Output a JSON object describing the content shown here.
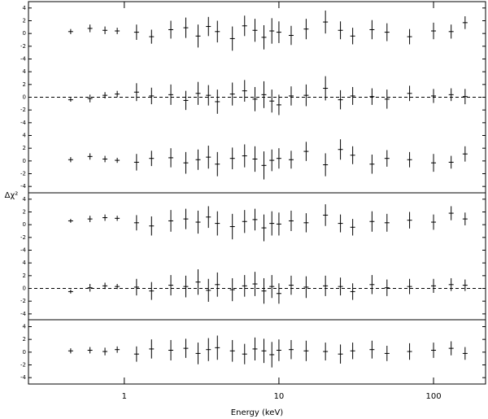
{
  "chart_data": {
    "type": "residuals",
    "xlabel": "Energy (keV)",
    "ylabel": "Δχ²",
    "log_x": true,
    "color": "#000000",
    "xlim": [
      0.24,
      217
    ],
    "xticks": [
      1,
      10,
      100
    ],
    "ylim": [
      -5,
      5
    ],
    "yticks": [
      -4,
      -2,
      0,
      2,
      4
    ],
    "x": [
      0.45,
      0.6,
      0.75,
      0.9,
      1.2,
      1.5,
      2,
      2.5,
      3,
      3.5,
      4,
      5,
      6,
      7,
      8,
      9,
      10,
      12,
      15,
      20,
      25,
      30,
      40,
      50,
      70,
      100,
      130,
      160
    ],
    "series": [
      {
        "zero_line": false,
        "values": [
          0.3,
          0.8,
          0.5,
          0.4,
          0.2,
          -0.5,
          0.6,
          0.9,
          -0.4,
          1.1,
          0.3,
          -0.8,
          1.2,
          0.5,
          -0.6,
          0.4,
          0.2,
          -0.3,
          0.7,
          1.8,
          0.5,
          -0.4,
          0.6,
          0.2,
          -0.5,
          0.4,
          0.3,
          1.7
        ],
        "errors": [
          0.4,
          0.6,
          0.6,
          0.5,
          1.2,
          1.1,
          1.4,
          1.6,
          1.8,
          1.5,
          1.7,
          1.9,
          1.6,
          1.8,
          1.9,
          2.0,
          1.7,
          1.5,
          1.6,
          1.8,
          1.4,
          1.3,
          1.5,
          1.4,
          1.2,
          1.3,
          1.1,
          1.0
        ]
      },
      {
        "zero_line": true,
        "values": [
          -0.4,
          -0.2,
          0.3,
          0.5,
          0.8,
          0.2,
          0.4,
          -0.5,
          0.6,
          0.3,
          -0.7,
          0.5,
          1.0,
          -0.3,
          0.4,
          -0.6,
          -1.2,
          0.2,
          0.3,
          1.4,
          -0.4,
          0.2,
          0.1,
          -0.3,
          0.6,
          0.2,
          0.4,
          0.1
        ],
        "errors": [
          0.3,
          0.6,
          0.5,
          0.5,
          1.4,
          1.3,
          1.6,
          1.5,
          1.8,
          1.6,
          1.9,
          1.8,
          1.7,
          1.9,
          2.1,
          1.8,
          1.6,
          1.5,
          1.7,
          1.9,
          1.5,
          1.4,
          1.3,
          1.5,
          1.2,
          1.1,
          1.0,
          1.2
        ]
      },
      {
        "zero_line": false,
        "values": [
          0.2,
          0.7,
          0.3,
          0.1,
          -0.2,
          0.4,
          0.5,
          -0.3,
          0.2,
          0.6,
          -0.5,
          0.4,
          0.8,
          0.3,
          -0.7,
          0.1,
          0.4,
          0.2,
          1.5,
          -0.6,
          1.8,
          0.9,
          -0.5,
          0.4,
          0.2,
          -0.3,
          -0.2,
          1.1
        ],
        "errors": [
          0.4,
          0.5,
          0.5,
          0.4,
          1.3,
          1.2,
          1.5,
          1.7,
          1.6,
          1.8,
          1.9,
          1.7,
          1.8,
          2.0,
          2.2,
          1.7,
          1.6,
          1.4,
          1.5,
          1.8,
          1.6,
          1.4,
          1.5,
          1.3,
          1.2,
          1.4,
          1.0,
          1.2
        ]
      },
      {
        "zero_line": false,
        "values": [
          0.6,
          0.9,
          1.1,
          1.0,
          0.3,
          -0.2,
          0.6,
          0.9,
          0.4,
          1.2,
          0.2,
          -0.3,
          0.5,
          0.8,
          -0.5,
          0.2,
          0.1,
          0.6,
          0.3,
          1.5,
          0.2,
          -0.4,
          0.5,
          0.3,
          0.7,
          0.4,
          1.8,
          0.9
        ],
        "errors": [
          0.3,
          0.5,
          0.5,
          0.4,
          1.2,
          1.5,
          1.7,
          1.6,
          1.8,
          1.7,
          1.9,
          2.0,
          1.8,
          1.7,
          2.1,
          1.9,
          1.8,
          1.6,
          1.5,
          1.7,
          1.4,
          1.3,
          1.6,
          1.4,
          1.3,
          1.2,
          1.1,
          1.0
        ]
      },
      {
        "zero_line": true,
        "values": [
          -0.5,
          0.1,
          0.4,
          0.3,
          0.2,
          -0.4,
          0.5,
          0.3,
          1.0,
          -0.3,
          0.6,
          -0.2,
          0.4,
          0.7,
          -0.4,
          0.3,
          -0.8,
          0.5,
          0.2,
          0.4,
          0.3,
          -0.5,
          0.6,
          0.1,
          0.3,
          0.4,
          0.6,
          0.5
        ],
        "errors": [
          0.3,
          0.6,
          0.5,
          0.4,
          1.3,
          1.4,
          1.6,
          1.7,
          2.0,
          1.8,
          1.9,
          1.8,
          1.7,
          1.9,
          2.0,
          1.8,
          1.6,
          1.5,
          1.7,
          1.6,
          1.4,
          1.3,
          1.5,
          1.3,
          1.2,
          1.1,
          1.0,
          0.9
        ]
      },
      {
        "zero_line": false,
        "values": [
          0.2,
          0.3,
          0.1,
          0.4,
          -0.3,
          0.5,
          0.3,
          0.6,
          -0.2,
          0.4,
          0.7,
          0.2,
          -0.3,
          0.5,
          0.2,
          -0.4,
          0.3,
          0.4,
          0.2,
          0.1,
          -0.3,
          0.2,
          0.4,
          -0.2,
          0.1,
          0.3,
          0.6,
          -0.2
        ],
        "errors": [
          0.4,
          0.5,
          0.6,
          0.5,
          1.2,
          1.5,
          1.6,
          1.5,
          1.7,
          1.8,
          1.9,
          1.7,
          1.6,
          1.8,
          1.9,
          2.0,
          1.7,
          1.5,
          1.6,
          1.4,
          1.5,
          1.3,
          1.4,
          1.2,
          1.3,
          1.2,
          1.1,
          1.0
        ]
      }
    ]
  }
}
